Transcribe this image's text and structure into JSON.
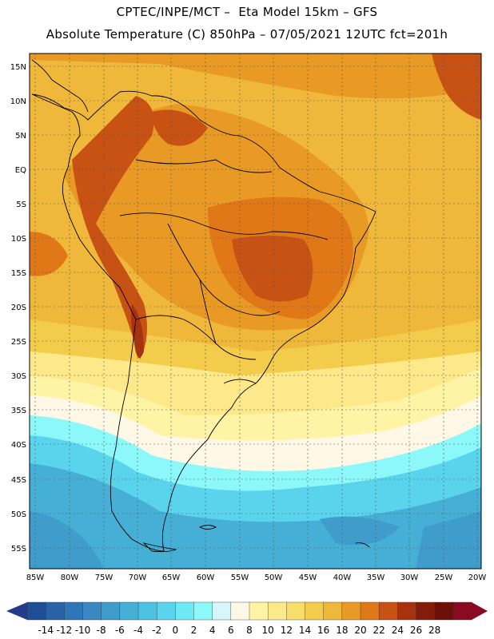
{
  "header": {
    "line1": "CPTEC/INPE/MCT –  Eta Model 15km – GFS",
    "line2": "Absolute Temperature (C) 850hPa – 07/05/2021 12UTC fct=201h"
  },
  "axes": {
    "lat_labels": [
      "15N",
      "10N",
      "5N",
      "EQ",
      "5S",
      "10S",
      "15S",
      "20S",
      "25S",
      "30S",
      "35S",
      "40S",
      "45S",
      "50S",
      "55S"
    ],
    "lon_labels": [
      "85W",
      "80W",
      "75W",
      "70W",
      "65W",
      "60W",
      "55W",
      "50W",
      "45W",
      "40W",
      "35W",
      "30W",
      "25W",
      "20W"
    ]
  },
  "colorbar": {
    "labels": [
      "-14",
      "-12",
      "-10",
      "-8",
      "-6",
      "-4",
      "-2",
      "0",
      "2",
      "4",
      "6",
      "8",
      "10",
      "12",
      "14",
      "16",
      "18",
      "20",
      "22",
      "24",
      "26",
      "28"
    ],
    "colors": [
      "#1f4e96",
      "#2a62a8",
      "#2f76b8",
      "#3a88c2",
      "#3f9ccb",
      "#45afd6",
      "#4cc2e2",
      "#5ad4ec",
      "#6ee8f4",
      "#8cf8fa",
      "#d6f6fa",
      "#fff8e6",
      "#fff3a6",
      "#fde88a",
      "#f8dc6c",
      "#f4cc4c",
      "#f0b83a",
      "#e89a24",
      "#e07818",
      "#c85214",
      "#a8320e",
      "#841c0a",
      "#6c1008",
      "#8a0a22"
    ],
    "low_arrow_color": "#263a8a",
    "high_arrow_color": "#8a0a24"
  },
  "palette": {
    "ocean_warm": "#f0b83a",
    "ocean_hot": "#e89a24",
    "land_hot": "#e07818",
    "land_very_hot": "#c85214",
    "land_extreme": "#a8320e",
    "mid_warm": "#f4cc4c",
    "mild": "#fde88a",
    "cool": "#fff3a6",
    "neutral": "#fff8e6",
    "cold": "#8cf8fa",
    "colder": "#5ad4ec",
    "very_cold": "#45afd6",
    "deep_cold": "#3f9ccb",
    "coastline": "#000000",
    "grid": "#555555"
  }
}
